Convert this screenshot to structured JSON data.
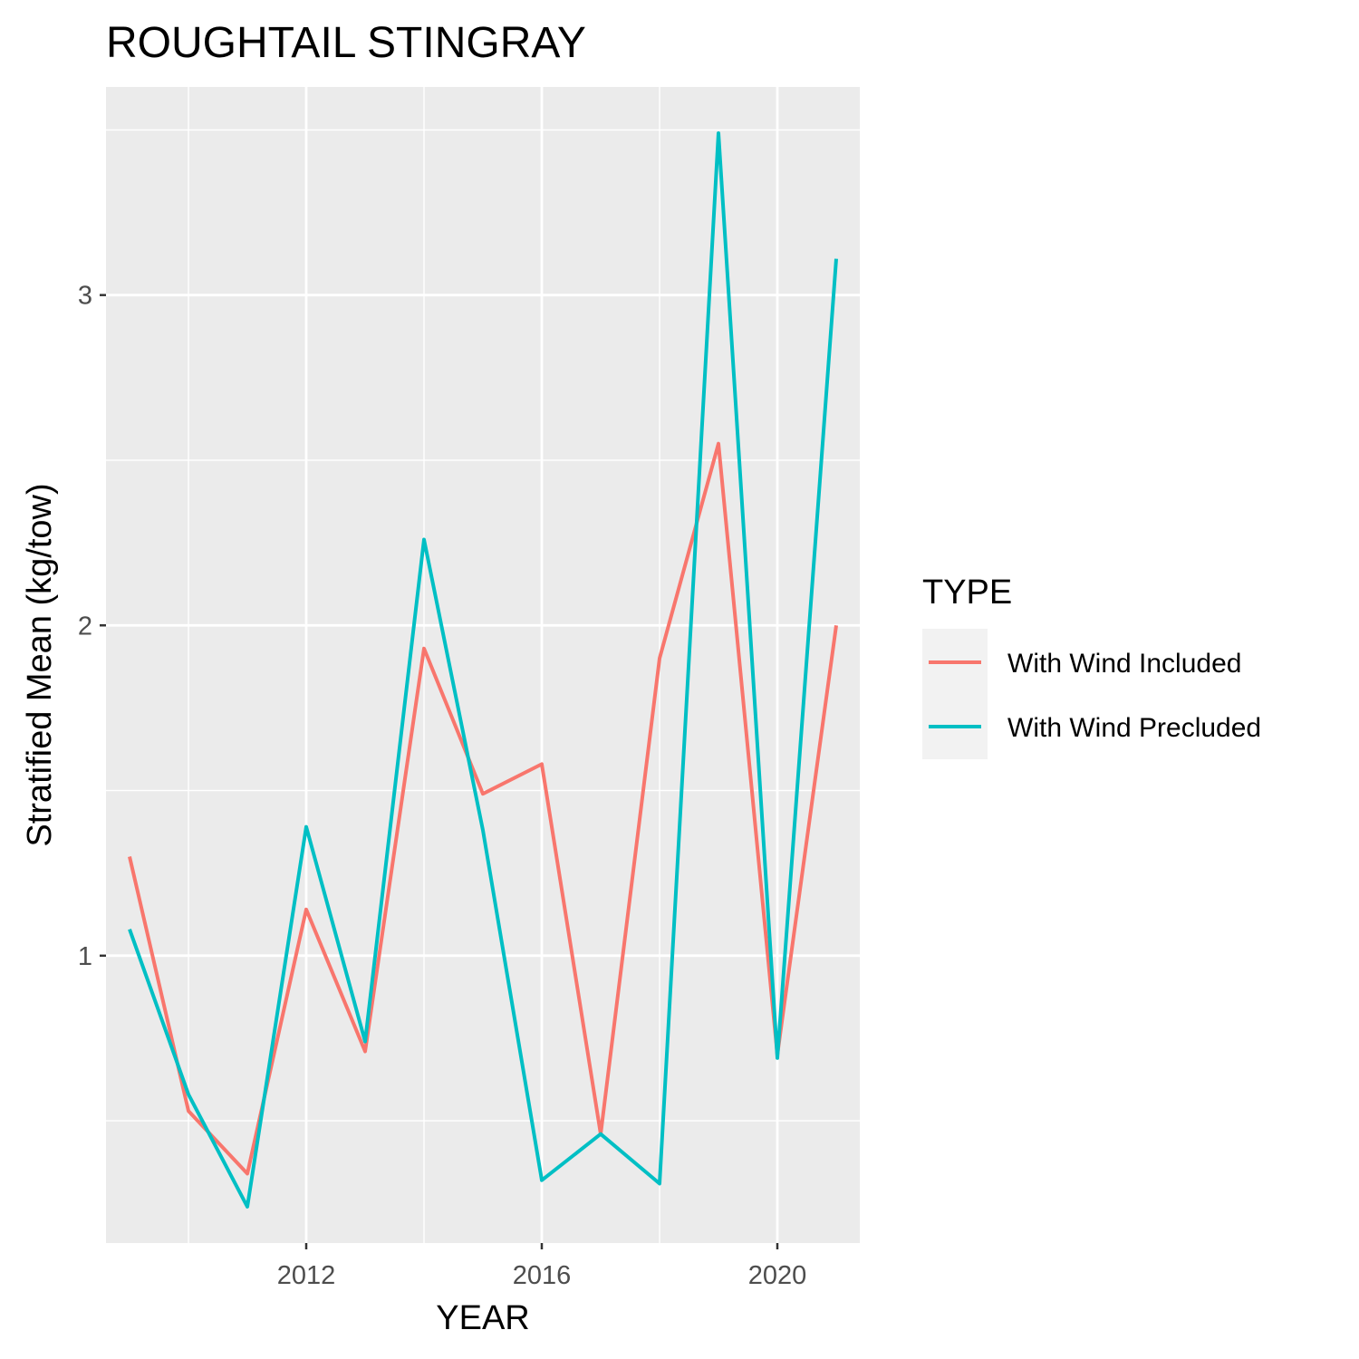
{
  "chart_data": {
    "type": "line",
    "title": "ROUGHTAIL STINGRAY",
    "xlabel": "YEAR",
    "ylabel": "Stratified Mean (kg/tow)",
    "xlim": [
      2008.6,
      2021.4
    ],
    "ylim": [
      0.13,
      3.63
    ],
    "x_ticks": [
      2012,
      2016,
      2020
    ],
    "x_minor_ticks": [
      2010,
      2014,
      2018
    ],
    "y_ticks": [
      1,
      2,
      3
    ],
    "y_minor_ticks": [
      0.5,
      1.5,
      2.5,
      3.5
    ],
    "grid": true,
    "legend": {
      "title": "TYPE",
      "position": "right"
    },
    "x": [
      2009,
      2010,
      2011,
      2012,
      2013,
      2014,
      2015,
      2016,
      2017,
      2018,
      2019,
      2020,
      2021
    ],
    "series": [
      {
        "name": "With Wind Included",
        "color": "#F8766D",
        "values": [
          1.3,
          0.53,
          0.34,
          1.14,
          0.71,
          1.93,
          1.49,
          1.58,
          0.46,
          1.9,
          2.55,
          0.7,
          2.0
        ]
      },
      {
        "name": "With Wind Precluded",
        "color": "#00BFC4",
        "values": [
          1.08,
          0.58,
          0.24,
          1.39,
          0.74,
          2.26,
          1.38,
          0.32,
          0.46,
          0.31,
          3.49,
          0.69,
          3.11
        ]
      }
    ]
  }
}
